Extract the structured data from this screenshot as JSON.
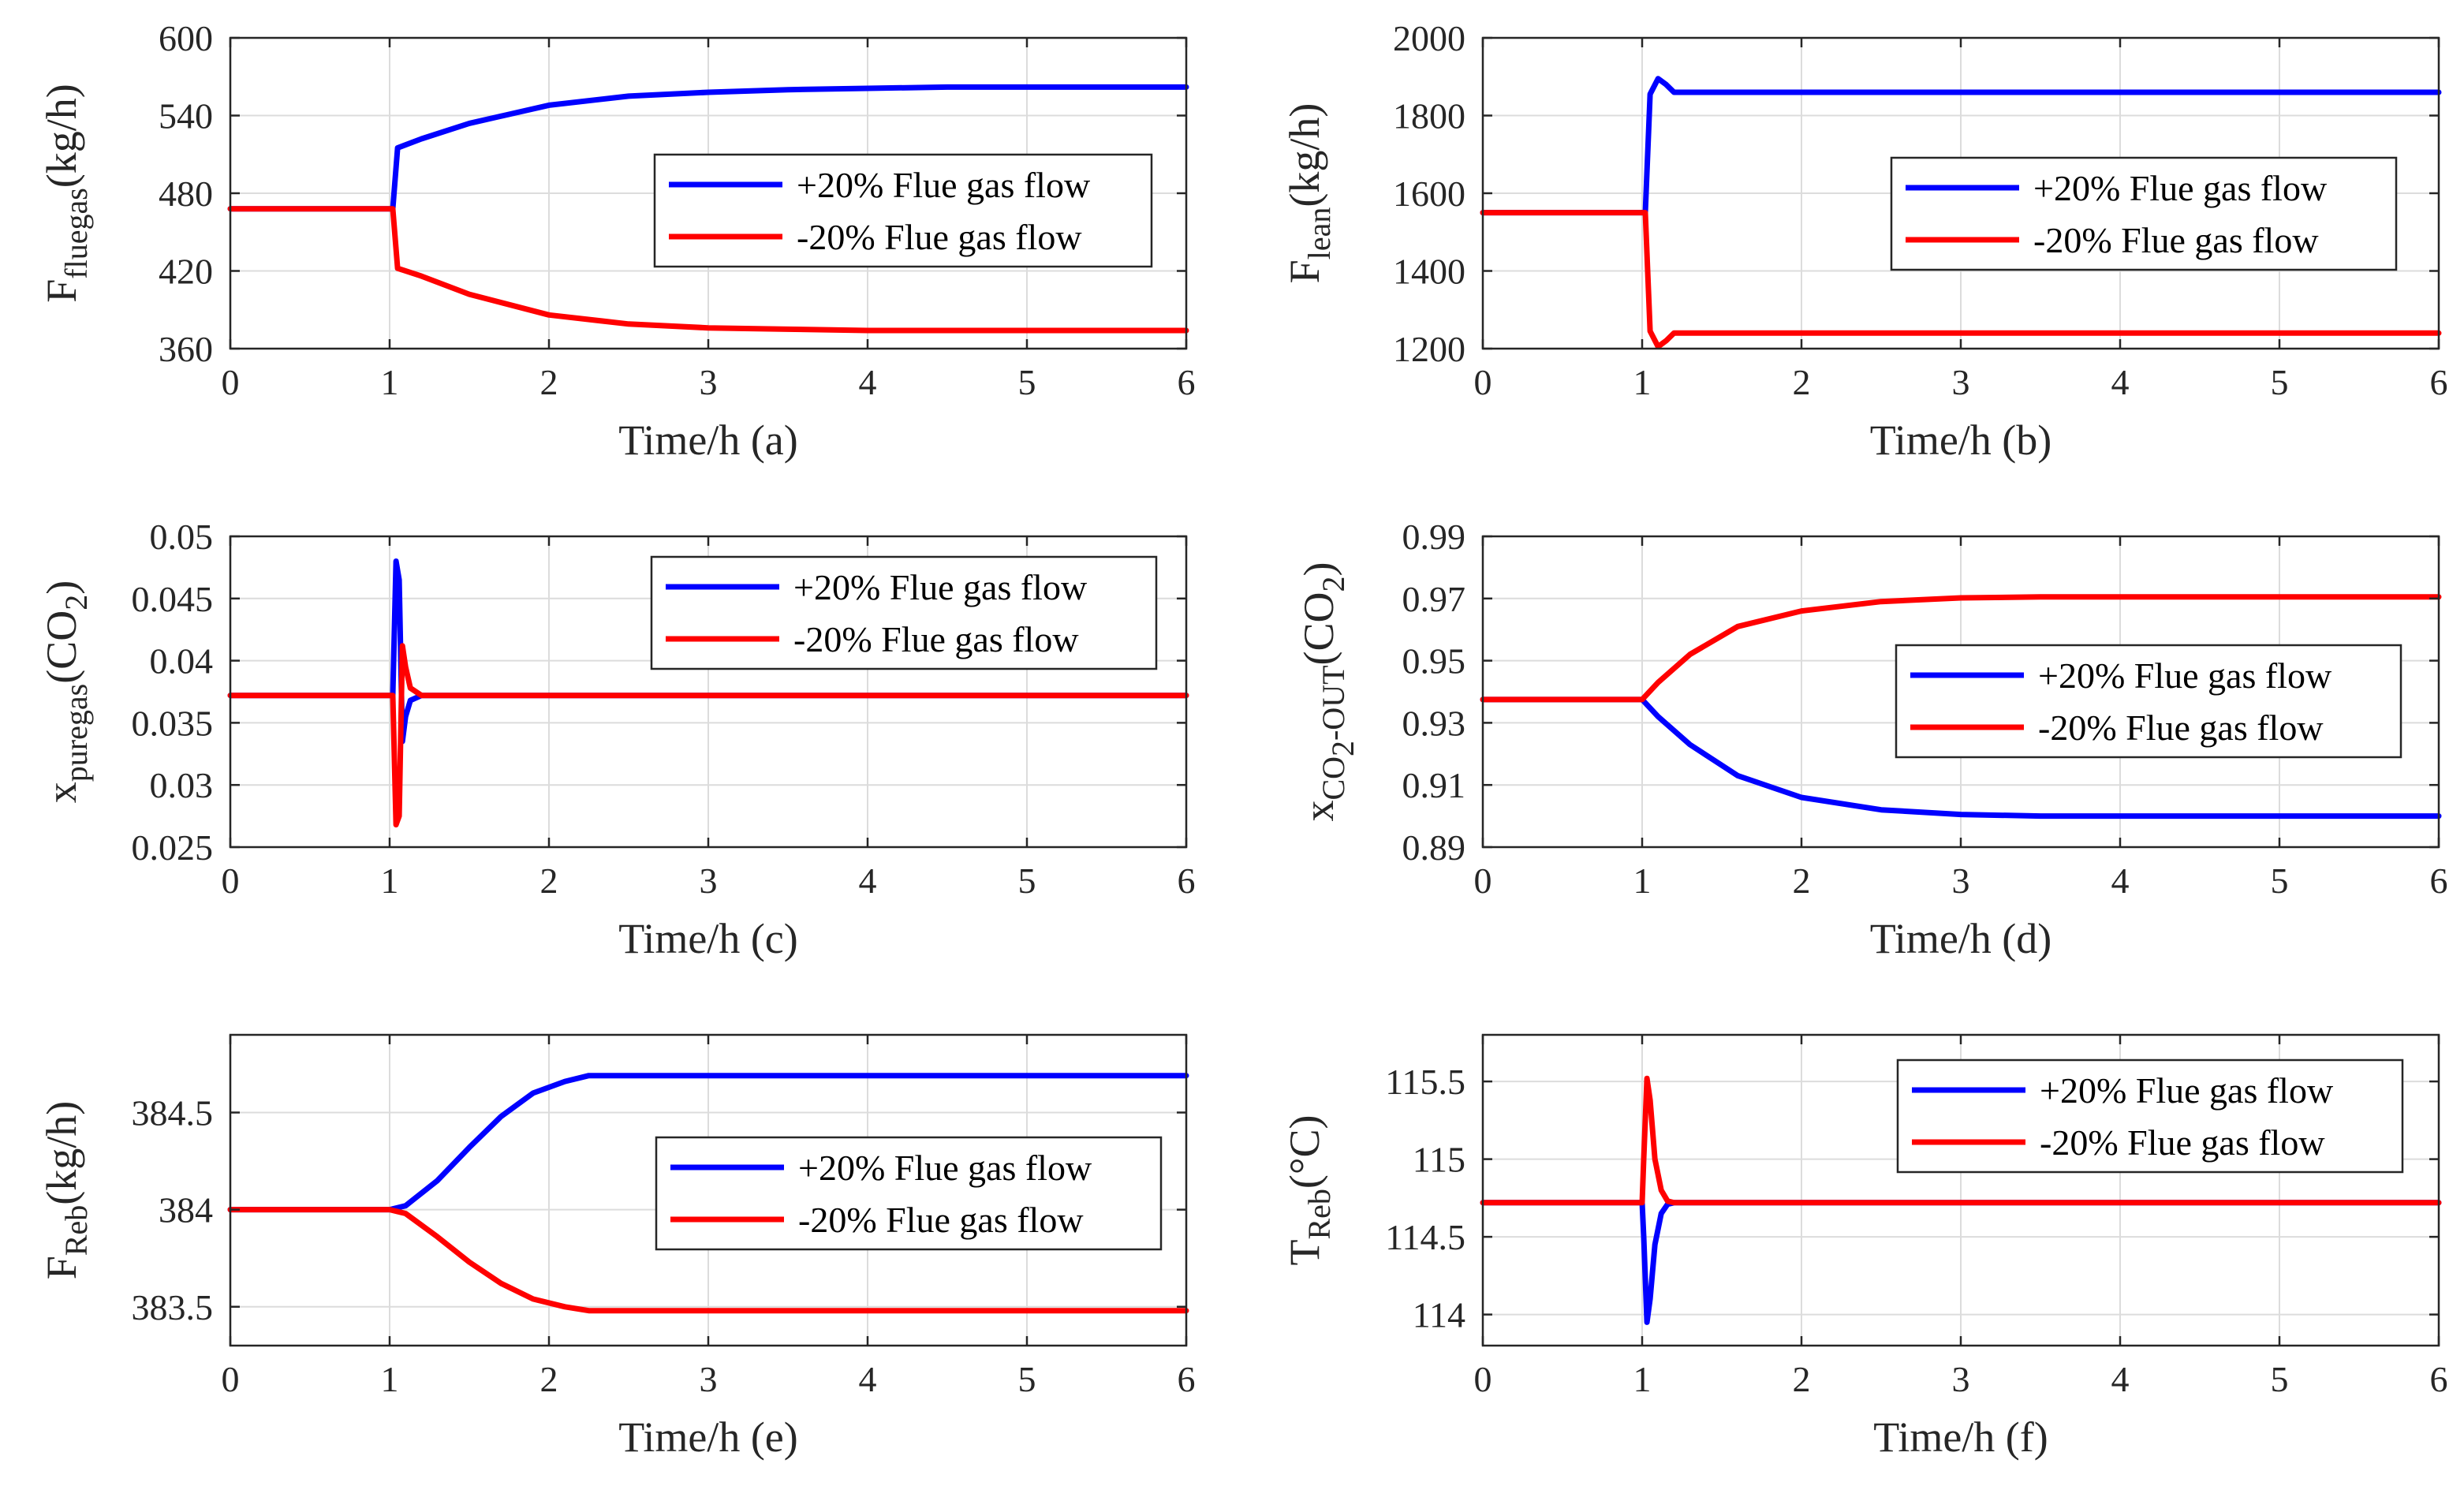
{
  "chart_data": [
    {
      "id": "a",
      "type": "line",
      "xlabel": "Time/h  (a)",
      "ylabel": {
        "main": "F",
        "sub": "fluegas",
        "post": "(kg/h)"
      },
      "xlim": [
        0,
        6
      ],
      "ylim": [
        360,
        600
      ],
      "xticks": [
        0,
        1,
        2,
        3,
        4,
        5,
        6
      ],
      "xtick_labels": [
        "0",
        "1",
        "2",
        "3",
        "4",
        "5",
        "6"
      ],
      "yticks": [
        360,
        420,
        480,
        540,
        600
      ],
      "ytick_labels": [
        "360",
        "420",
        "480",
        "540",
        "600"
      ],
      "legend_position": "upper-right",
      "series": [
        {
          "name": "+20% Flue gas flow",
          "color": "#0000ff",
          "x": [
            0,
            1,
            1.02,
            1.05,
            1.2,
            1.5,
            2,
            2.5,
            3,
            3.5,
            4,
            4.5,
            5,
            6
          ],
          "y": [
            468,
            468,
            468,
            515,
            522,
            534,
            548,
            555,
            558,
            560,
            561,
            562,
            562,
            562
          ]
        },
        {
          "name": "-20% Flue gas flow",
          "color": "#ff0000",
          "x": [
            0,
            1,
            1.02,
            1.05,
            1.2,
            1.5,
            2,
            2.5,
            3,
            3.5,
            4,
            4.5,
            5,
            6
          ],
          "y": [
            468,
            468,
            468,
            422,
            416,
            402,
            386,
            379,
            376,
            375,
            374,
            374,
            374,
            374
          ]
        }
      ]
    },
    {
      "id": "b",
      "type": "line",
      "xlabel": "Time/h  (b)",
      "ylabel": {
        "main": "F",
        "sub": "lean",
        "post": "(kg/h)"
      },
      "xlim": [
        0,
        6
      ],
      "ylim": [
        1200,
        2000
      ],
      "xticks": [
        0,
        1,
        2,
        3,
        4,
        5,
        6
      ],
      "xtick_labels": [
        "0",
        "1",
        "2",
        "3",
        "4",
        "5",
        "6"
      ],
      "yticks": [
        1200,
        1400,
        1600,
        1800,
        2000
      ],
      "ytick_labels": [
        "1200",
        "1400",
        "1600",
        "1800",
        "2000"
      ],
      "legend_position": "upper-right",
      "series": [
        {
          "name": "+20% Flue gas flow",
          "color": "#0000ff",
          "x": [
            0,
            1,
            1.02,
            1.05,
            1.1,
            1.15,
            1.2,
            1.3,
            6
          ],
          "y": [
            1550,
            1550,
            1550,
            1855,
            1895,
            1880,
            1860,
            1860,
            1860
          ]
        },
        {
          "name": "-20% Flue gas flow",
          "color": "#ff0000",
          "x": [
            0,
            1,
            1.02,
            1.05,
            1.1,
            1.15,
            1.2,
            1.3,
            6
          ],
          "y": [
            1550,
            1550,
            1550,
            1245,
            1205,
            1220,
            1240,
            1240,
            1240
          ]
        }
      ]
    },
    {
      "id": "c",
      "type": "line",
      "xlabel": "Time/h  (c)",
      "ylabel": {
        "main": "x",
        "sub": "puregas",
        "post": "(CO",
        "post_sub": "2",
        "post_end": ")"
      },
      "xlim": [
        0,
        6
      ],
      "ylim": [
        0.025,
        0.05
      ],
      "xticks": [
        0,
        1,
        2,
        3,
        4,
        5,
        6
      ],
      "xtick_labels": [
        "0",
        "1",
        "2",
        "3",
        "4",
        "5",
        "6"
      ],
      "yticks": [
        0.025,
        0.03,
        0.035,
        0.04,
        0.045,
        0.05
      ],
      "ytick_labels": [
        "0.025",
        "0.03",
        "0.035",
        "0.04",
        "0.045",
        "0.05"
      ],
      "legend_position": "upper-right",
      "series": [
        {
          "name": "+20% Flue gas flow",
          "color": "#0000ff",
          "x": [
            0,
            1,
            1.02,
            1.04,
            1.06,
            1.08,
            1.1,
            1.13,
            1.2,
            6
          ],
          "y": [
            0.0372,
            0.0372,
            0.0372,
            0.048,
            0.0465,
            0.0335,
            0.0355,
            0.0368,
            0.0372,
            0.0372
          ]
        },
        {
          "name": "-20% Flue gas flow",
          "color": "#ff0000",
          "x": [
            0,
            1,
            1.02,
            1.04,
            1.06,
            1.08,
            1.1,
            1.13,
            1.2,
            6
          ],
          "y": [
            0.0372,
            0.0372,
            0.0372,
            0.0268,
            0.0275,
            0.0412,
            0.0395,
            0.0378,
            0.0372,
            0.0372
          ]
        }
      ]
    },
    {
      "id": "d",
      "type": "line",
      "xlabel": "Time/h  (d)",
      "ylabel": {
        "main": "x",
        "sub": "CO",
        "sub_sub": "2",
        "sub_post": "-OUT",
        "post": "(CO",
        "post_sub": "2",
        "post_end": ")"
      },
      "xlim": [
        0,
        6
      ],
      "ylim": [
        0.89,
        0.99
      ],
      "xticks": [
        0,
        1,
        2,
        3,
        4,
        5,
        6
      ],
      "xtick_labels": [
        "0",
        "1",
        "2",
        "3",
        "4",
        "5",
        "6"
      ],
      "yticks": [
        0.89,
        0.91,
        0.93,
        0.95,
        0.97,
        0.99
      ],
      "ytick_labels": [
        "0.89",
        "0.91",
        "0.93",
        "0.95",
        "0.97",
        "0.99"
      ],
      "legend_position": "center-right",
      "series": [
        {
          "name": "+20% Flue gas flow",
          "color": "#0000ff",
          "x": [
            0,
            1,
            1.1,
            1.3,
            1.6,
            2,
            2.5,
            3,
            3.5,
            4,
            5,
            6
          ],
          "y": [
            0.9375,
            0.9375,
            0.932,
            0.923,
            0.913,
            0.906,
            0.902,
            0.9005,
            0.9,
            0.9,
            0.9,
            0.9
          ]
        },
        {
          "name": "-20% Flue gas flow",
          "color": "#ff0000",
          "x": [
            0,
            1,
            1.1,
            1.3,
            1.6,
            2,
            2.5,
            3,
            3.5,
            4,
            5,
            6
          ],
          "y": [
            0.9375,
            0.9375,
            0.943,
            0.952,
            0.961,
            0.966,
            0.969,
            0.9702,
            0.9705,
            0.9705,
            0.9705,
            0.9705
          ]
        }
      ]
    },
    {
      "id": "e",
      "type": "line",
      "xlabel": "Time/h  (e)",
      "ylabel": {
        "main": "F",
        "sub": "Reb",
        "post": "(kg/h)"
      },
      "xlim": [
        0,
        6
      ],
      "ylim": [
        383.3,
        384.9
      ],
      "xticks": [
        0,
        1,
        2,
        3,
        4,
        5,
        6
      ],
      "xtick_labels": [
        "0",
        "1",
        "2",
        "3",
        "4",
        "5",
        "6"
      ],
      "yticks": [
        383.5,
        384,
        384.5
      ],
      "ytick_labels": [
        "383.5",
        "384",
        "384.5"
      ],
      "legend_position": "center-right",
      "series": [
        {
          "name": "+20% Flue gas flow",
          "color": "#0000ff",
          "x": [
            0,
            1,
            1.1,
            1.3,
            1.5,
            1.7,
            1.9,
            2.1,
            2.25,
            6
          ],
          "y": [
            384,
            384,
            384.02,
            384.15,
            384.32,
            384.48,
            384.6,
            384.66,
            384.69,
            384.69
          ]
        },
        {
          "name": "-20% Flue gas flow",
          "color": "#ff0000",
          "x": [
            0,
            1,
            1.1,
            1.3,
            1.5,
            1.7,
            1.9,
            2.1,
            2.25,
            6
          ],
          "y": [
            384,
            384,
            383.98,
            383.86,
            383.73,
            383.62,
            383.54,
            383.5,
            383.48,
            383.48
          ]
        }
      ]
    },
    {
      "id": "f",
      "type": "line",
      "xlabel": "Time/h  (f)",
      "ylabel": {
        "main": "T",
        "sub": "Reb",
        "post": "(°C)"
      },
      "xlim": [
        0,
        6
      ],
      "ylim": [
        113.8,
        115.8
      ],
      "xticks": [
        0,
        1,
        2,
        3,
        4,
        5,
        6
      ],
      "xtick_labels": [
        "0",
        "1",
        "2",
        "3",
        "4",
        "5",
        "6"
      ],
      "yticks": [
        114,
        114.5,
        115,
        115.5
      ],
      "ytick_labels": [
        "114",
        "114.5",
        "115",
        "115.5"
      ],
      "legend_position": "upper-right",
      "series": [
        {
          "name": "+20% Flue gas flow",
          "color": "#0000ff",
          "x": [
            0,
            1,
            1.01,
            1.03,
            1.05,
            1.08,
            1.12,
            1.16,
            1.2,
            6
          ],
          "y": [
            114.72,
            114.72,
            114.5,
            113.95,
            114.1,
            114.45,
            114.65,
            114.71,
            114.72,
            114.72
          ]
        },
        {
          "name": "-20% Flue gas flow",
          "color": "#ff0000",
          "x": [
            0,
            1,
            1.01,
            1.03,
            1.05,
            1.08,
            1.12,
            1.16,
            1.2,
            6
          ],
          "y": [
            114.72,
            114.72,
            115.0,
            115.52,
            115.38,
            115.0,
            114.8,
            114.73,
            114.72,
            114.72
          ]
        }
      ]
    }
  ]
}
